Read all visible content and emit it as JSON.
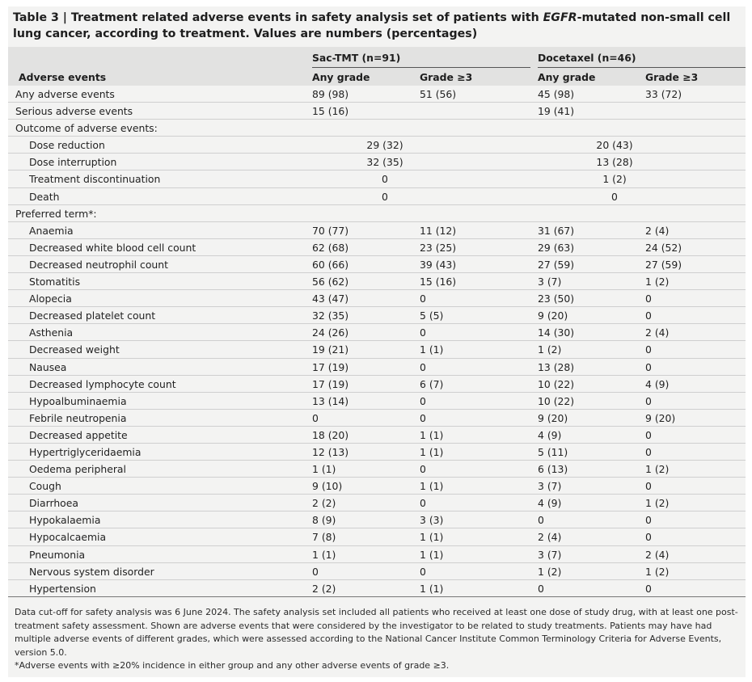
{
  "title": {
    "prefix": "Table 3 | Treatment related adverse events in safety analysis set of patients with ",
    "italic": "EGFR",
    "suffix": "-mutated non-small cell lung cancer, according to treatment. Values are numbers (percentages)"
  },
  "header": {
    "group1": "Sac-TMT (n=91)",
    "group2": "Docetaxel (n=46)",
    "col0": "Adverse events",
    "any1": "Any grade",
    "g3_1": "Grade ≥3",
    "any2": "Any grade",
    "g3_2": "Grade ≥3"
  },
  "rows": [
    {
      "label": "Any adverse events",
      "indent": false,
      "v": [
        "89 (98)",
        "51 (56)",
        "45 (98)",
        "33 (72)"
      ]
    },
    {
      "label": "Serious adverse events",
      "indent": false,
      "v": [
        "15 (16)",
        "",
        "19 (41)",
        ""
      ]
    },
    {
      "label": "Outcome of adverse events:",
      "indent": false,
      "v": [
        "",
        "",
        "",
        ""
      ]
    },
    {
      "label": "Dose reduction",
      "indent": true,
      "merged": [
        "29 (32)",
        "20 (43)"
      ]
    },
    {
      "label": "Dose interruption",
      "indent": true,
      "merged": [
        "32 (35)",
        "13 (28)"
      ]
    },
    {
      "label": "Treatment discontinuation",
      "indent": true,
      "merged": [
        "0",
        "1 (2)"
      ]
    },
    {
      "label": "Death",
      "indent": true,
      "merged": [
        "0",
        "0"
      ]
    },
    {
      "label": "Preferred term*:",
      "indent": false,
      "v": [
        "",
        "",
        "",
        ""
      ]
    },
    {
      "label": "Anaemia",
      "indent": true,
      "v": [
        "70 (77)",
        "11 (12)",
        "31 (67)",
        "2 (4)"
      ]
    },
    {
      "label": "Decreased white blood cell count",
      "indent": true,
      "v": [
        "62 (68)",
        "23 (25)",
        "29 (63)",
        "24 (52)"
      ]
    },
    {
      "label": "Decreased neutrophil count",
      "indent": true,
      "v": [
        "60 (66)",
        "39 (43)",
        "27 (59)",
        "27 (59)"
      ]
    },
    {
      "label": "Stomatitis",
      "indent": true,
      "v": [
        "56 (62)",
        "15 (16)",
        "3 (7)",
        "1 (2)"
      ]
    },
    {
      "label": "Alopecia",
      "indent": true,
      "v": [
        "43 (47)",
        "0",
        "23 (50)",
        "0"
      ]
    },
    {
      "label": "Decreased platelet count",
      "indent": true,
      "v": [
        "32 (35)",
        "5 (5)",
        "9 (20)",
        "0"
      ]
    },
    {
      "label": "Asthenia",
      "indent": true,
      "v": [
        "24 (26)",
        "0",
        "14 (30)",
        "2 (4)"
      ]
    },
    {
      "label": "Decreased weight",
      "indent": true,
      "v": [
        "19 (21)",
        "1 (1)",
        "1 (2)",
        "0"
      ]
    },
    {
      "label": "Nausea",
      "indent": true,
      "v": [
        "17 (19)",
        "0",
        "13 (28)",
        "0"
      ]
    },
    {
      "label": "Decreased lymphocyte count",
      "indent": true,
      "v": [
        "17 (19)",
        "6 (7)",
        "10 (22)",
        "4 (9)"
      ]
    },
    {
      "label": "Hypoalbuminaemia",
      "indent": true,
      "v": [
        "13 (14)",
        "0",
        "10 (22)",
        "0"
      ]
    },
    {
      "label": "Febrile neutropenia",
      "indent": true,
      "v": [
        "0",
        "0",
        "9 (20)",
        "9 (20)"
      ]
    },
    {
      "label": "Decreased appetite",
      "indent": true,
      "v": [
        "18 (20)",
        "1 (1)",
        "4 (9)",
        "0"
      ]
    },
    {
      "label": "Hypertriglyceridaemia",
      "indent": true,
      "v": [
        "12 (13)",
        "1 (1)",
        "5 (11)",
        "0"
      ]
    },
    {
      "label": "Oedema peripheral",
      "indent": true,
      "v": [
        "1 (1)",
        "0",
        "6 (13)",
        "1 (2)"
      ]
    },
    {
      "label": "Cough",
      "indent": true,
      "v": [
        "9 (10)",
        "1 (1)",
        "3 (7)",
        "0"
      ]
    },
    {
      "label": "Diarrhoea",
      "indent": true,
      "v": [
        "2 (2)",
        "0",
        "4 (9)",
        "1 (2)"
      ]
    },
    {
      "label": "Hypokalaemia",
      "indent": true,
      "v": [
        "8 (9)",
        "3 (3)",
        "0",
        "0"
      ]
    },
    {
      "label": "Hypocalcaemia",
      "indent": true,
      "v": [
        "7 (8)",
        "1 (1)",
        "2 (4)",
        "0"
      ]
    },
    {
      "label": "Pneumonia",
      "indent": true,
      "v": [
        "1 (1)",
        "1 (1)",
        "3 (7)",
        "2 (4)"
      ]
    },
    {
      "label": "Nervous system disorder",
      "indent": true,
      "v": [
        "0",
        "0",
        "1 (2)",
        "1 (2)"
      ]
    },
    {
      "label": "Hypertension",
      "indent": true,
      "v": [
        "2 (2)",
        "1 (1)",
        "0",
        "0"
      ]
    }
  ],
  "footnotes": [
    "Data cut-off for safety analysis was 6 June 2024. The safety analysis set included all patients who received at least one dose of study drug, with at least one post-treatment safety assessment. Shown are adverse events that were considered by the investigator to be related to study treatments. Patients may have had multiple adverse events of different grades, which were assessed according to the National Cancer Institute Common Terminology Criteria for Adverse Events, version 5.0.",
    "*Adverse events with ≥20% incidence in either group and any other adverse events of grade ≥3."
  ],
  "colors": {
    "card_bg": "#f3f3f2",
    "header_bg": "#e2e2e1",
    "text": "#222222"
  }
}
